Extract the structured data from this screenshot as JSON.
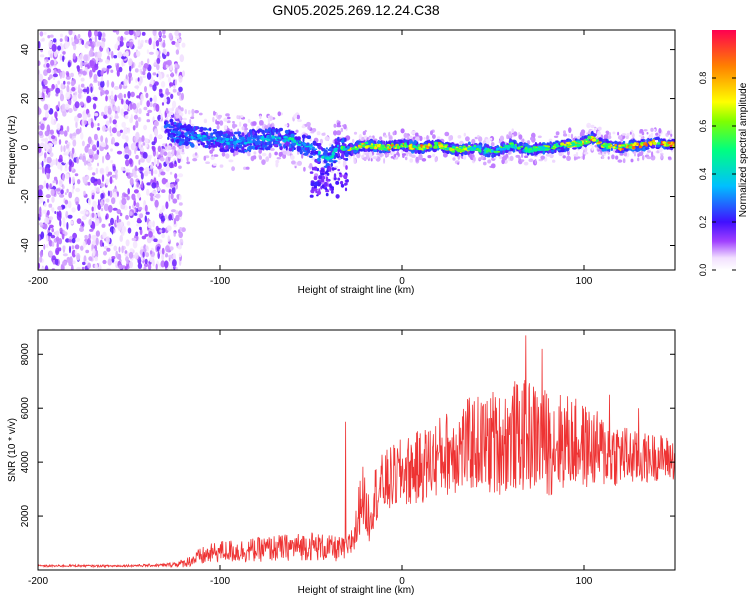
{
  "title": "GN05.2025.269.12.24.C38",
  "chart_data": [
    {
      "type": "heatmap",
      "xlabel": "Height of straight line (km)",
      "ylabel": "Frequency (Hz)",
      "xlim": [
        -200,
        150
      ],
      "ylim": [
        -50,
        48
      ],
      "xticks": [
        -200,
        -100,
        0,
        100
      ],
      "yticks": [
        -40,
        -20,
        0,
        20,
        40
      ],
      "colorbar": {
        "label": "Normalized spectral amplitude",
        "range": [
          0.0,
          1.0
        ],
        "ticks": [
          0.0,
          0.2,
          0.4,
          0.6,
          0.8
        ]
      },
      "noise_region_end_km": -120,
      "ridge": {
        "x_km": [
          -130,
          -120,
          -110,
          -100,
          -90,
          -80,
          -70,
          -60,
          -50,
          -40,
          -35,
          -30,
          -20,
          -10,
          0,
          10,
          20,
          30,
          40,
          50,
          60,
          70,
          80,
          90,
          100,
          105,
          110,
          120,
          130,
          140,
          150
        ],
        "freq_hz": [
          8,
          5,
          4,
          3,
          2,
          3,
          4,
          3,
          0,
          -5,
          0,
          -1,
          1,
          0,
          1,
          0,
          1,
          -1,
          0,
          -2,
          1,
          -1,
          0,
          1,
          2,
          4,
          1,
          0,
          1,
          2,
          1
        ],
        "peak_amplitude": [
          0.3,
          0.35,
          0.4,
          0.4,
          0.35,
          0.4,
          0.45,
          0.5,
          0.4,
          0.45,
          0.55,
          0.7,
          0.85,
          0.85,
          0.8,
          0.85,
          0.85,
          0.75,
          0.6,
          0.55,
          0.6,
          0.55,
          0.65,
          0.7,
          0.85,
          0.9,
          0.85,
          0.9,
          0.9,
          0.92,
          0.9
        ]
      }
    },
    {
      "type": "line",
      "xlabel": "Height of straight line (km)",
      "ylabel": "SNR (10 * v/v)",
      "xlim": [
        -200,
        150
      ],
      "ylim": [
        0,
        8900
      ],
      "xticks": [
        -200,
        -100,
        0,
        100
      ],
      "yticks": [
        2000,
        4000,
        6000,
        8000
      ],
      "series": [
        {
          "name": "SNR",
          "color": "#ee3333",
          "x": [
            -200,
            -190,
            -180,
            -170,
            -160,
            -150,
            -140,
            -130,
            -120,
            -110,
            -100,
            -90,
            -80,
            -70,
            -60,
            -50,
            -40,
            -30,
            -25,
            -22,
            -20,
            -18,
            -15,
            -10,
            0,
            10,
            20,
            30,
            40,
            50,
            60,
            70,
            80,
            90,
            100,
            110,
            120,
            130,
            140,
            150
          ],
          "y": [
            150,
            150,
            160,
            150,
            150,
            160,
            170,
            180,
            250,
            500,
            700,
            700,
            750,
            800,
            850,
            900,
            800,
            750,
            1500,
            3000,
            2200,
            2000,
            2800,
            3200,
            3600,
            3800,
            4200,
            4500,
            4700,
            4600,
            4900,
            5000,
            4700,
            4800,
            4600,
            4400,
            4300,
            4100,
            4200,
            4100
          ],
          "spread": [
            40,
            40,
            40,
            40,
            40,
            40,
            50,
            60,
            150,
            350,
            400,
            450,
            450,
            500,
            500,
            550,
            500,
            450,
            900,
            1200,
            1000,
            1000,
            1100,
            1200,
            1300,
            1400,
            1500,
            1700,
            1800,
            1900,
            2000,
            2100,
            2000,
            1800,
            1600,
            1400,
            1200,
            1000,
            900,
            800
          ],
          "peaks": [
            {
              "x": -31,
              "y": 5500
            },
            {
              "x": 50,
              "y": 6600
            },
            {
              "x": 62,
              "y": 7000
            },
            {
              "x": 68,
              "y": 8700
            },
            {
              "x": 77,
              "y": 8200
            },
            {
              "x": 114,
              "y": 6500
            },
            {
              "x": 130,
              "y": 6000
            }
          ]
        }
      ]
    }
  ]
}
